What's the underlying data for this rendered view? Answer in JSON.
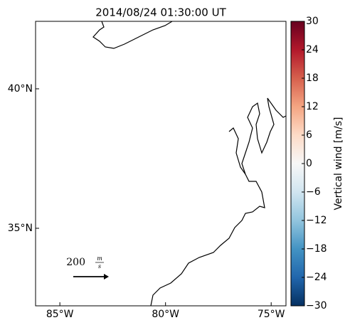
{
  "chart_data": {
    "type": "map",
    "title": "2014/08/24 01:30:00 UT",
    "xlim": [
      -86.15,
      -74.3
    ],
    "ylim": [
      32.22,
      42.42
    ],
    "xticks": [
      {
        "value": -85,
        "label": "85°W"
      },
      {
        "value": -80,
        "label": "80°W"
      },
      {
        "value": -75,
        "label": "75°W"
      }
    ],
    "yticks": [
      {
        "value": 40,
        "label": "40°N"
      },
      {
        "value": 35,
        "label": "35°N"
      }
    ],
    "colorbar": {
      "label": "Vertical wind [m/s]",
      "lim": [
        -30,
        30
      ],
      "ticks": [
        {
          "value": -30,
          "label": "−30"
        },
        {
          "value": -24,
          "label": "−24"
        },
        {
          "value": -18,
          "label": "−18"
        },
        {
          "value": -12,
          "label": "−12"
        },
        {
          "value": -6,
          "label": "−6"
        },
        0,
        6,
        12,
        18,
        24,
        30
      ],
      "colors": [
        "#053061",
        "#2166ac",
        "#4393c3",
        "#92c5de",
        "#d1e5f0",
        "#f7f7f7",
        "#fddbc7",
        "#f4a582",
        "#d6604d",
        "#b2182b",
        "#67001f"
      ]
    },
    "quiver_key": {
      "value": 200,
      "unit_numerator": "m",
      "unit_denominator": "s"
    }
  }
}
